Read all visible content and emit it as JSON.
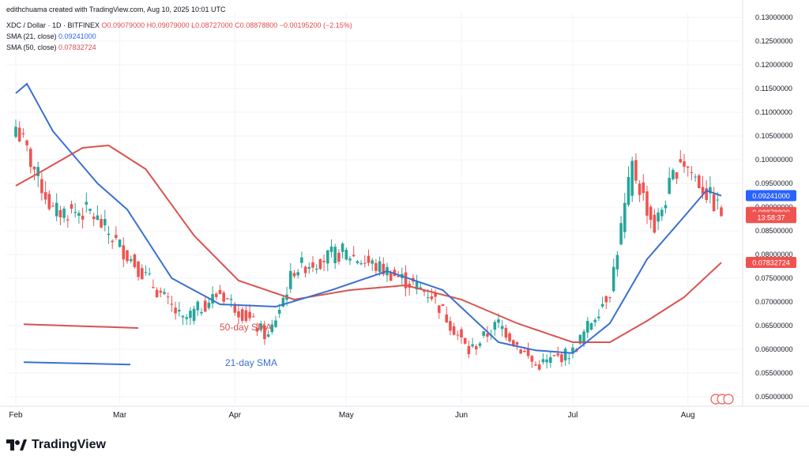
{
  "header": {
    "author_line": "edithchuama created with TradingView.com, Aug 10, 2025 10:01 UTC",
    "symbol": "XDC / Dollar · 1D · BITFINEX",
    "ohlc": "O0.09079000 H0.09079000 L0.08727000 C0.08878800 −0.00195200 (−2.15%)",
    "sma21": "SMA (21, close)",
    "sma21_value": "0.09241000",
    "sma50": "SMA (50, close)",
    "sma50_value": "0.07832724"
  },
  "footer": {
    "brand": "TradingView"
  },
  "colors": {
    "up": "#26a69a",
    "down": "#ef5350",
    "sma21": "#3b6fd1",
    "sma50": "#d9534f"
  },
  "chart_data": {
    "type": "candlestick",
    "y_axis": {
      "min": 0.048,
      "max": 0.131,
      "ticks": [
        0.05,
        0.055,
        0.06,
        0.065,
        0.07,
        0.075,
        0.08,
        0.085,
        0.09,
        0.095,
        0.1,
        0.105,
        0.11,
        0.115,
        0.12,
        0.125,
        0.13
      ],
      "tick_labels": [
        "0.05000000",
        "0.05500000",
        "0.06000000",
        "0.06500000",
        "0.07000000",
        "0.07500000",
        "0.08000000",
        "0.08500000",
        "0.09000000",
        "0.09500000",
        "0.10000000",
        "0.10500000",
        "0.11000000",
        "0.11500000",
        "0.12000000",
        "0.12500000",
        "0.13000000"
      ]
    },
    "x_labels": [
      "Feb",
      "Mar",
      "Apr",
      "May",
      "Jun",
      "Jul",
      "Aug"
    ],
    "x_label_days": [
      0,
      28,
      59,
      89,
      120,
      150,
      181
    ],
    "last_day": 190,
    "price_badges": [
      {
        "value": 0.09241,
        "label": "0.09241000",
        "color": "#2962ff"
      },
      {
        "value": 0.0888788,
        "label": "0.08878800",
        "color": "#ef5350"
      },
      {
        "value": 0.0878,
        "label": "13:58:37",
        "color": "#ef5350"
      },
      {
        "value": 0.07832724,
        "label": "0.07832724",
        "color": "#ef5350"
      }
    ],
    "annotations": [
      {
        "text": "50-day SMA",
        "color": "#d9534f"
      },
      {
        "text": "21-day SMA",
        "color": "#3b6fd1"
      }
    ],
    "key_closes": [
      {
        "day": 0,
        "close": 0.107
      },
      {
        "day": 10,
        "close": 0.089
      },
      {
        "day": 20,
        "close": 0.089
      },
      {
        "day": 30,
        "close": 0.08
      },
      {
        "day": 45,
        "close": 0.066
      },
      {
        "day": 55,
        "close": 0.072
      },
      {
        "day": 68,
        "close": 0.0625
      },
      {
        "day": 75,
        "close": 0.077
      },
      {
        "day": 88,
        "close": 0.0805
      },
      {
        "day": 100,
        "close": 0.0765
      },
      {
        "day": 112,
        "close": 0.0715
      },
      {
        "day": 122,
        "close": 0.0595
      },
      {
        "day": 130,
        "close": 0.0655
      },
      {
        "day": 140,
        "close": 0.0565
      },
      {
        "day": 150,
        "close": 0.0595
      },
      {
        "day": 160,
        "close": 0.0725
      },
      {
        "day": 166,
        "close": 0.0985
      },
      {
        "day": 172,
        "close": 0.0855
      },
      {
        "day": 179,
        "close": 0.1005
      },
      {
        "day": 186,
        "close": 0.093
      },
      {
        "day": 190,
        "close": 0.08879
      }
    ],
    "sma21_points": [
      {
        "day": 0,
        "value": 0.114
      },
      {
        "day": 3,
        "value": 0.116
      },
      {
        "day": 10,
        "value": 0.106
      },
      {
        "day": 22,
        "value": 0.095
      },
      {
        "day": 30,
        "value": 0.0895
      },
      {
        "day": 42,
        "value": 0.075
      },
      {
        "day": 55,
        "value": 0.0695
      },
      {
        "day": 70,
        "value": 0.069
      },
      {
        "day": 85,
        "value": 0.0725
      },
      {
        "day": 100,
        "value": 0.0765
      },
      {
        "day": 115,
        "value": 0.0725
      },
      {
        "day": 130,
        "value": 0.0615
      },
      {
        "day": 140,
        "value": 0.0598
      },
      {
        "day": 150,
        "value": 0.0592
      },
      {
        "day": 160,
        "value": 0.0655
      },
      {
        "day": 170,
        "value": 0.079
      },
      {
        "day": 180,
        "value": 0.088
      },
      {
        "day": 186,
        "value": 0.0935
      },
      {
        "day": 190,
        "value": 0.0924
      }
    ],
    "sma50_points": [
      {
        "day": 0,
        "value": 0.0945
      },
      {
        "day": 8,
        "value": 0.098
      },
      {
        "day": 18,
        "value": 0.1025
      },
      {
        "day": 25,
        "value": 0.103
      },
      {
        "day": 35,
        "value": 0.098
      },
      {
        "day": 48,
        "value": 0.084
      },
      {
        "day": 60,
        "value": 0.0745
      },
      {
        "day": 75,
        "value": 0.0705
      },
      {
        "day": 90,
        "value": 0.0725
      },
      {
        "day": 105,
        "value": 0.0735
      },
      {
        "day": 120,
        "value": 0.0705
      },
      {
        "day": 135,
        "value": 0.0655
      },
      {
        "day": 150,
        "value": 0.0615
      },
      {
        "day": 160,
        "value": 0.0615
      },
      {
        "day": 170,
        "value": 0.066
      },
      {
        "day": 180,
        "value": 0.071
      },
      {
        "day": 190,
        "value": 0.0783
      }
    ]
  }
}
